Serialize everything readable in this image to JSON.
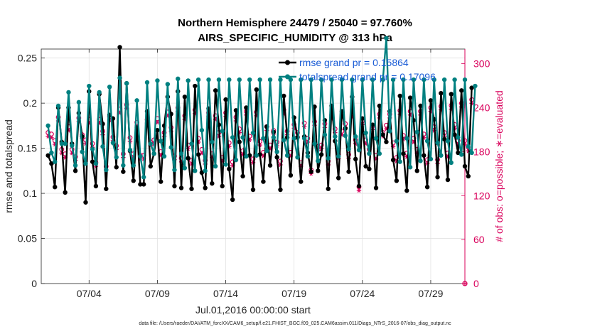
{
  "chart_data": {
    "type": "line",
    "title": "Northern Hemisphere 24479 / 25040 = 97.760%",
    "subtitle": "AIRS_SPECIFIC_HUMIDITY @ 313 hPa",
    "xlabel": "Jul.01,2016 00:00:00 start",
    "ylabel_left": "rmse and totalspread",
    "ylabel_right": "# of obs: o=possible; ∗=evaluated",
    "footer": "data file: /Users/raeder/DAI/ATM_forcXX/CAM6_setup/f.e21.FHIST_BGC.f09_025.CAM6assim.011/Diags_NTrS_2016-07/obs_diag_output.nc",
    "xlim_days": [
      0.5,
      31.5
    ],
    "ylim_left": [
      0,
      0.26
    ],
    "ylim_right": [
      0,
      320
    ],
    "x_ticks": [
      {
        "day": 4,
        "label": "07/04"
      },
      {
        "day": 9,
        "label": "07/09"
      },
      {
        "day": 14,
        "label": "07/14"
      },
      {
        "day": 19,
        "label": "07/19"
      },
      {
        "day": 24,
        "label": "07/24"
      },
      {
        "day": 29,
        "label": "07/29"
      }
    ],
    "y_ticks_left": [
      {
        "value": 0,
        "label": "0"
      },
      {
        "value": 0.05,
        "label": "0.05"
      },
      {
        "value": 0.1,
        "label": "0.1"
      },
      {
        "value": 0.15,
        "label": "0.15"
      },
      {
        "value": 0.2,
        "label": "0.2"
      },
      {
        "value": 0.25,
        "label": "0.25"
      }
    ],
    "y_ticks_right": [
      {
        "value": 0,
        "label": "0"
      },
      {
        "value": 60,
        "label": "60"
      },
      {
        "value": 120,
        "label": "120"
      },
      {
        "value": 180,
        "label": "180"
      },
      {
        "value": 240,
        "label": "240"
      },
      {
        "value": 300,
        "label": "300"
      }
    ],
    "grid": true,
    "legend_position": "top-right",
    "time_step_days": 0.25,
    "time_start_day": 1.0,
    "series": [
      {
        "name": "rmse",
        "legend": "rmse grand pr = 0.15864",
        "color": "#000000",
        "axis": "left",
        "values": [
          0.142,
          0.133,
          0.107,
          0.195,
          0.157,
          0.101,
          0.195,
          0.155,
          0.125,
          0.189,
          0.163,
          0.09,
          0.213,
          0.135,
          0.108,
          0.21,
          0.177,
          0.105,
          0.187,
          0.183,
          0.129,
          0.262,
          0.124,
          0.222,
          0.147,
          0.114,
          0.173,
          0.11,
          0.11,
          0.191,
          0.13,
          0.144,
          0.17,
          0.113,
          0.175,
          0.207,
          0.188,
          0.108,
          0.213,
          0.106,
          0.207,
          0.139,
          0.105,
          0.219,
          0.143,
          0.123,
          0.106,
          0.194,
          0.111,
          0.214,
          0.176,
          0.108,
          0.204,
          0.127,
          0.093,
          0.192,
          0.157,
          0.119,
          0.195,
          0.142,
          0.104,
          0.215,
          0.143,
          0.113,
          0.174,
          0.131,
          0.168,
          0.14,
          0.104,
          0.208,
          0.162,
          0.12,
          0.184,
          0.162,
          0.113,
          0.163,
          0.145,
          0.124,
          0.196,
          0.125,
          0.143,
          0.181,
          0.105,
          0.197,
          0.158,
          0.117,
          0.191,
          0.172,
          0.124,
          0.207,
          0.138,
          0.108,
          0.183,
          0.13,
          0.127,
          0.176,
          0.106,
          0.197,
          0.165,
          0.157,
          0.191,
          0.137,
          0.114,
          0.208,
          0.144,
          0.103,
          0.206,
          0.181,
          0.125,
          0.197,
          0.142,
          0.107,
          0.203,
          0.182,
          0.118,
          0.211,
          0.16,
          0.115,
          0.21,
          0.165,
          0.145,
          0.214,
          0.13,
          0.119,
          0.217
        ]
      },
      {
        "name": "totalspread",
        "legend": "totalspread grand pr = 0.17096",
        "color": "#008080",
        "axis": "left",
        "values": [
          0.175,
          0.145,
          0.135,
          0.197,
          0.155,
          0.155,
          0.212,
          0.153,
          0.131,
          0.201,
          0.146,
          0.133,
          0.219,
          0.149,
          0.133,
          0.212,
          0.152,
          0.126,
          0.218,
          0.156,
          0.14,
          0.228,
          0.131,
          0.222,
          0.148,
          0.131,
          0.203,
          0.141,
          0.118,
          0.223,
          0.155,
          0.144,
          0.225,
          0.158,
          0.141,
          0.221,
          0.151,
          0.126,
          0.227,
          0.144,
          0.128,
          0.225,
          0.155,
          0.125,
          0.226,
          0.17,
          0.125,
          0.226,
          0.157,
          0.13,
          0.226,
          0.169,
          0.132,
          0.226,
          0.162,
          0.137,
          0.226,
          0.162,
          0.141,
          0.226,
          0.167,
          0.142,
          0.226,
          0.161,
          0.147,
          0.226,
          0.162,
          0.146,
          0.226,
          0.159,
          0.142,
          0.226,
          0.161,
          0.14,
          0.226,
          0.161,
          0.141,
          0.226,
          0.155,
          0.136,
          0.226,
          0.165,
          0.139,
          0.226,
          0.163,
          0.141,
          0.226,
          0.164,
          0.149,
          0.226,
          0.163,
          0.148,
          0.226,
          0.167,
          0.144,
          0.226,
          0.161,
          0.144,
          0.226,
          0.272,
          0.169,
          0.226,
          0.158,
          0.135,
          0.226,
          0.161,
          0.129,
          0.226,
          0.168,
          0.136,
          0.226,
          0.158,
          0.138,
          0.226,
          0.156,
          0.142,
          0.226,
          0.158,
          0.134,
          0.226,
          0.162,
          0.143,
          0.226,
          0.152,
          0.145,
          0.219
        ]
      }
    ],
    "obs_possible_offset": 5,
    "obs_evaluated": [
      201,
      199,
      190,
      222,
      178,
      172,
      209,
      178,
      168,
      221,
      198,
      191,
      219,
      186,
      160,
      219,
      203,
      155,
      223,
      195,
      183,
      233,
      172,
      239,
      194,
      172,
      215,
      170,
      170,
      219,
      188,
      191,
      220,
      175,
      201,
      229,
      208,
      169,
      235,
      166,
      224,
      184,
      163,
      232,
      193,
      178,
      163,
      228,
      172,
      224,
      201,
      167,
      228,
      187,
      161,
      222,
      206,
      176,
      230,
      196,
      165,
      229,
      189,
      174,
      209,
      184,
      204,
      188,
      162,
      232,
      203,
      174,
      212,
      201,
      160,
      214,
      193,
      150,
      216,
      182,
      184,
      213,
      162,
      225,
      206,
      171,
      203,
      213,
      171,
      227,
      191,
      127,
      217,
      191,
      178,
      210,
      170,
      226,
      201,
      211,
      226,
      187,
      167,
      231,
      197,
      173,
      230,
      193,
      178,
      230,
      199,
      164,
      235,
      209,
      164,
      237,
      201,
      173,
      238,
      212,
      190,
      241,
      190,
      181,
      246
    ]
  }
}
